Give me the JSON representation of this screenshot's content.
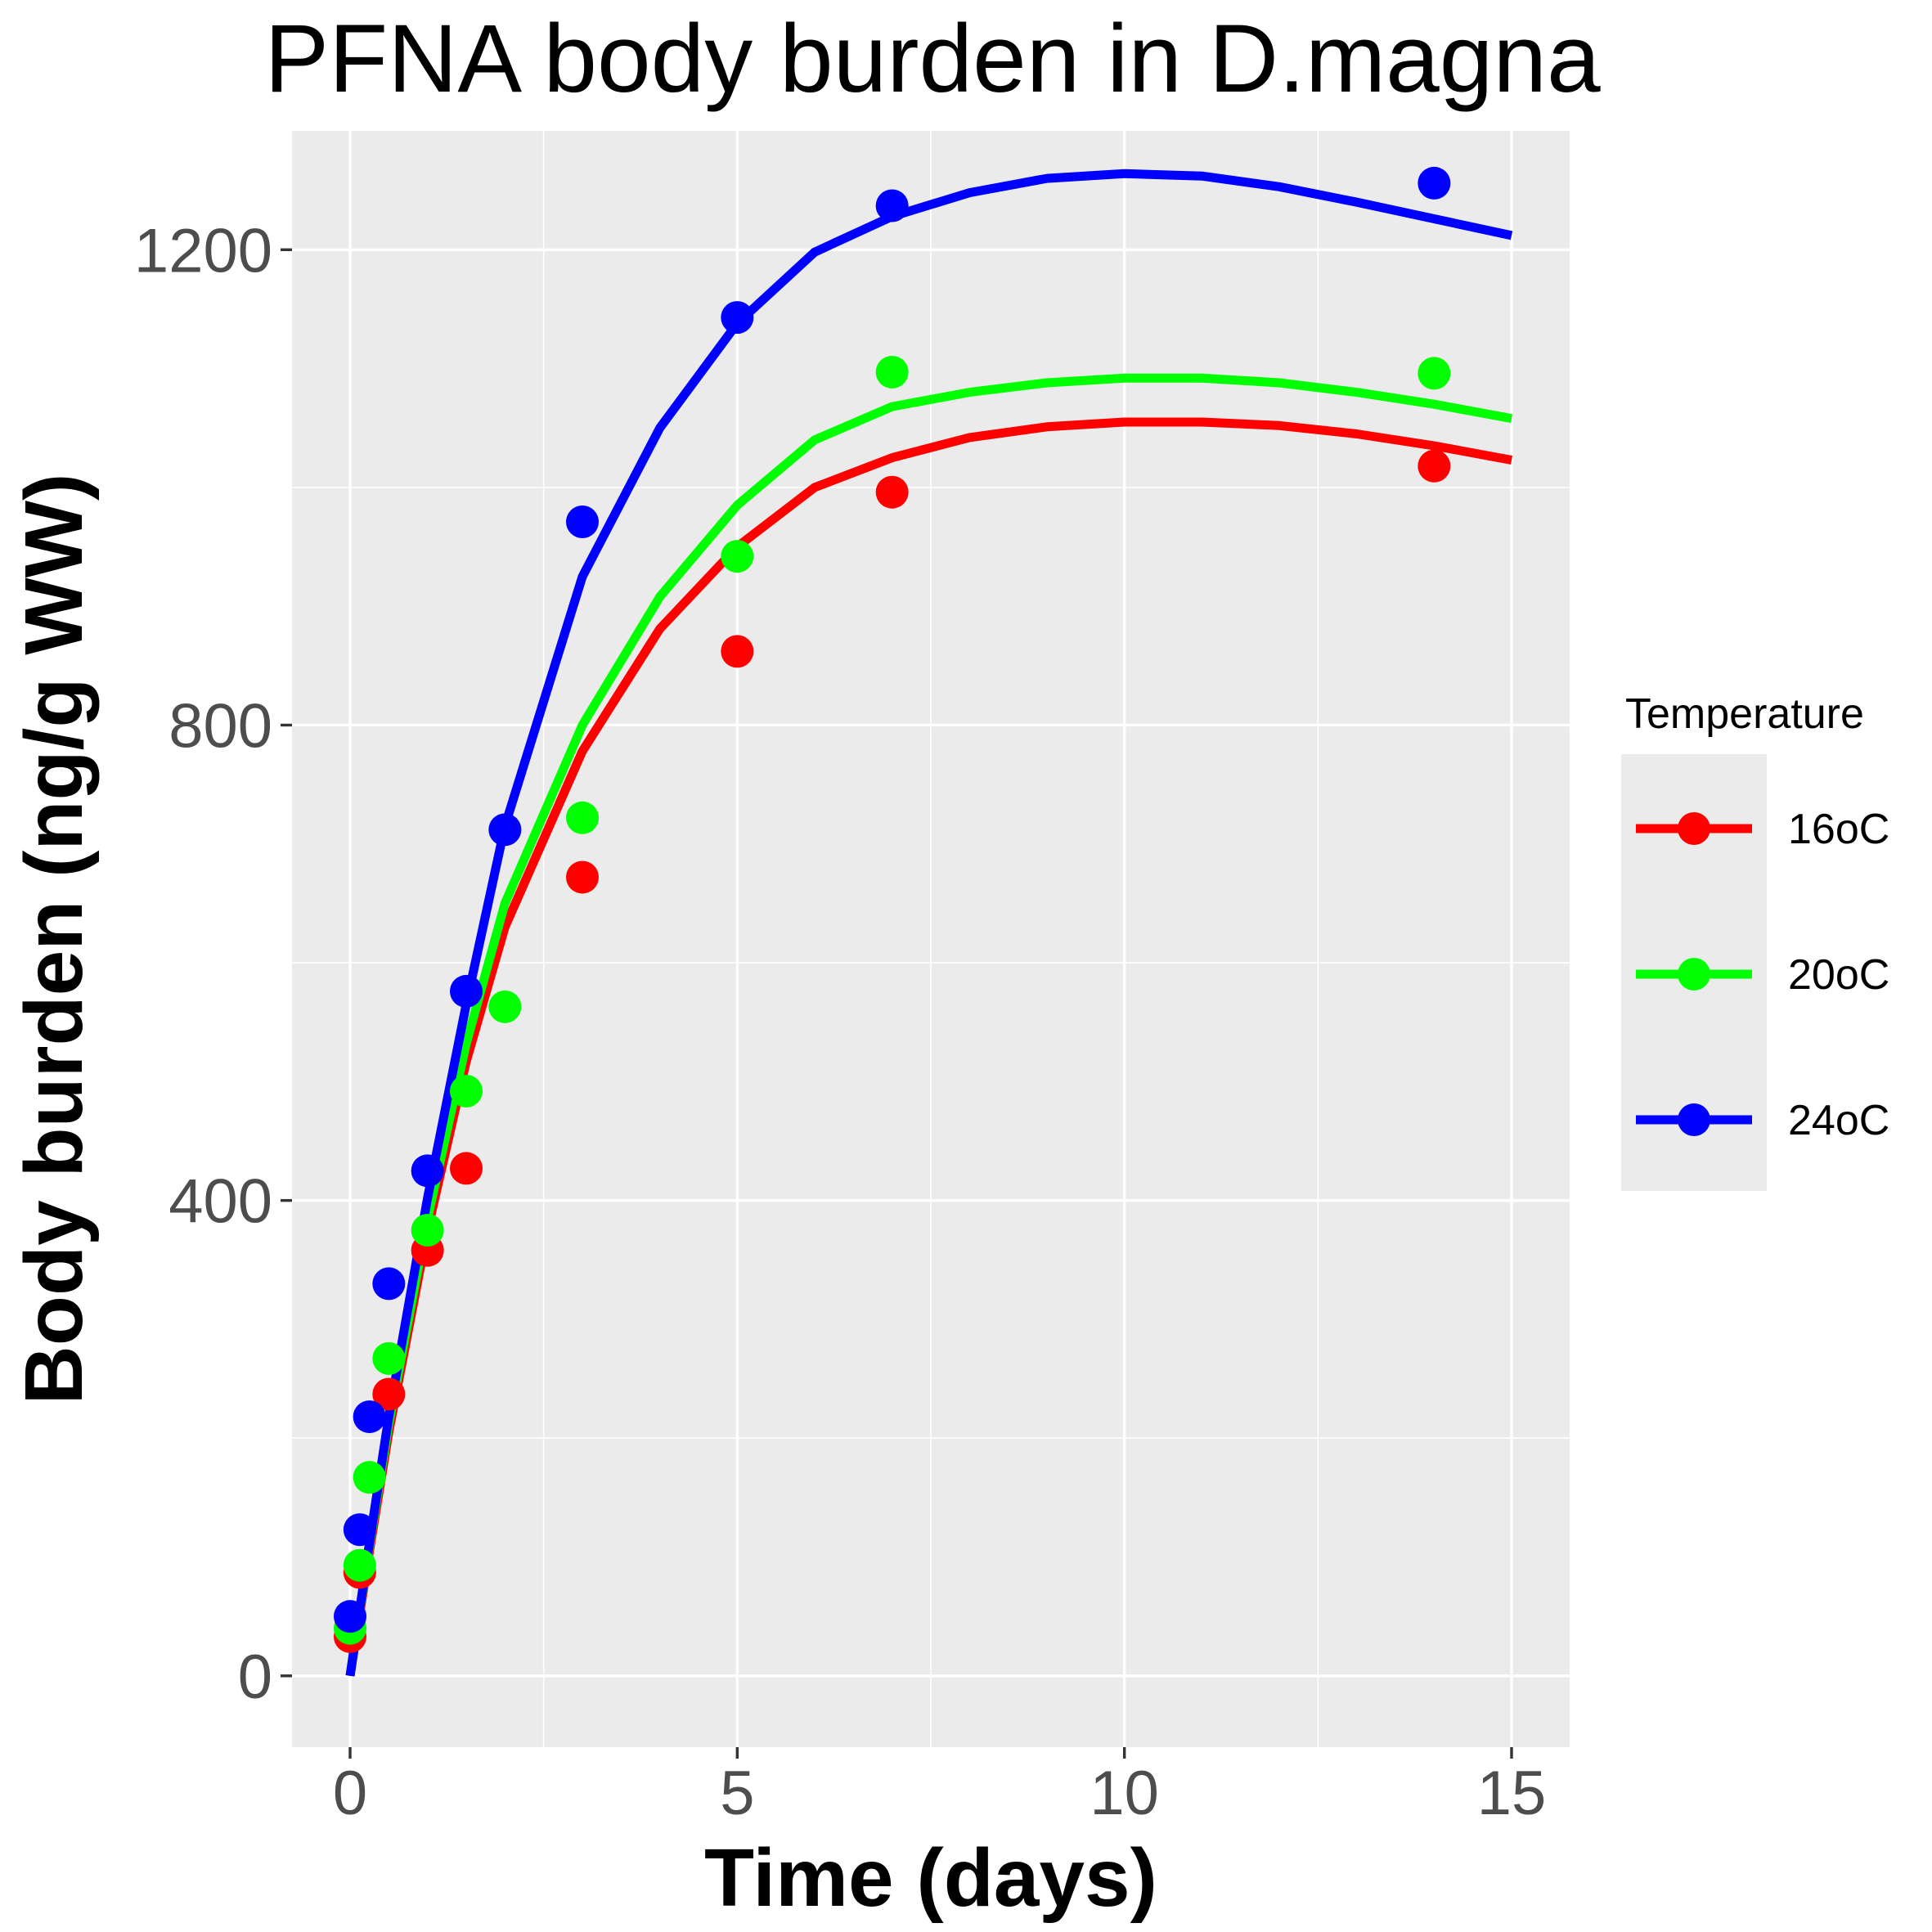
{
  "chart_data": {
    "type": "line",
    "title": "PFNA body burden in D.magna",
    "xlabel": "Time (days)",
    "ylabel": "Body burden (ng/g WW)",
    "xlim": [
      -0.75,
      15.75
    ],
    "ylim": [
      -60,
      1300
    ],
    "xticks": [
      0,
      5,
      10,
      15
    ],
    "xtick_labels": [
      "0",
      "5",
      "10",
      "15"
    ],
    "yticks": [
      0,
      400,
      800,
      1200
    ],
    "ytick_labels": [
      "0",
      "400",
      "800",
      "1200"
    ],
    "grid": true,
    "legend": {
      "title": "Temperature",
      "position": "right"
    },
    "series": [
      {
        "name": "16oC",
        "color": "#ff0000",
        "points": [
          [
            0,
            33
          ],
          [
            0.125,
            87
          ],
          [
            0.5,
            237
          ],
          [
            1,
            358
          ],
          [
            1.5,
            427
          ],
          [
            3,
            672
          ],
          [
            5,
            862
          ],
          [
            7,
            996
          ],
          [
            14,
            1018
          ]
        ],
        "fit": [
          [
            0,
            0
          ],
          [
            0.25,
            105
          ],
          [
            0.5,
            205
          ],
          [
            1,
            375
          ],
          [
            1.5,
            517
          ],
          [
            2,
            630
          ],
          [
            3,
            778
          ],
          [
            4,
            881
          ],
          [
            5,
            950
          ],
          [
            6,
            1000
          ],
          [
            7,
            1025
          ],
          [
            8,
            1042
          ],
          [
            9,
            1051
          ],
          [
            10,
            1055
          ],
          [
            11,
            1055
          ],
          [
            12,
            1052
          ],
          [
            13,
            1045
          ],
          [
            14,
            1035
          ],
          [
            15,
            1023
          ]
        ]
      },
      {
        "name": "20oC",
        "color": "#00ff00",
        "points": [
          [
            0,
            40
          ],
          [
            0.125,
            93
          ],
          [
            0.25,
            167
          ],
          [
            0.5,
            267
          ],
          [
            1,
            375
          ],
          [
            1.5,
            492
          ],
          [
            2,
            563
          ],
          [
            3,
            722
          ],
          [
            5,
            942
          ],
          [
            7,
            1097
          ],
          [
            14,
            1096
          ]
        ],
        "fit": [
          [
            0,
            0
          ],
          [
            0.25,
            110
          ],
          [
            0.5,
            212
          ],
          [
            1,
            385
          ],
          [
            1.5,
            532
          ],
          [
            2,
            650
          ],
          [
            3,
            800
          ],
          [
            4,
            908
          ],
          [
            5,
            985
          ],
          [
            6,
            1040
          ],
          [
            7,
            1068
          ],
          [
            8,
            1080
          ],
          [
            9,
            1088
          ],
          [
            10,
            1092
          ],
          [
            11,
            1092
          ],
          [
            12,
            1088
          ],
          [
            13,
            1080
          ],
          [
            14,
            1070
          ],
          [
            15,
            1058
          ]
        ]
      },
      {
        "name": "24oC",
        "color": "#0000ff",
        "points": [
          [
            0,
            50
          ],
          [
            0.125,
            123
          ],
          [
            0.25,
            218
          ],
          [
            0.5,
            330
          ],
          [
            1,
            425
          ],
          [
            1.5,
            576
          ],
          [
            2,
            712
          ],
          [
            3,
            971
          ],
          [
            5,
            1143
          ],
          [
            7,
            1237
          ],
          [
            14,
            1256
          ]
        ],
        "fit": [
          [
            0,
            0
          ],
          [
            0.25,
            112
          ],
          [
            0.5,
            218
          ],
          [
            1,
            402
          ],
          [
            1.5,
            565
          ],
          [
            2,
            715
          ],
          [
            3,
            925
          ],
          [
            4,
            1050
          ],
          [
            5,
            1138
          ],
          [
            6,
            1198
          ],
          [
            7,
            1228
          ],
          [
            8,
            1248
          ],
          [
            9,
            1260
          ],
          [
            10,
            1264
          ],
          [
            11,
            1262
          ],
          [
            12,
            1253
          ],
          [
            13,
            1240
          ],
          [
            14,
            1226
          ],
          [
            15,
            1212
          ]
        ]
      }
    ]
  }
}
